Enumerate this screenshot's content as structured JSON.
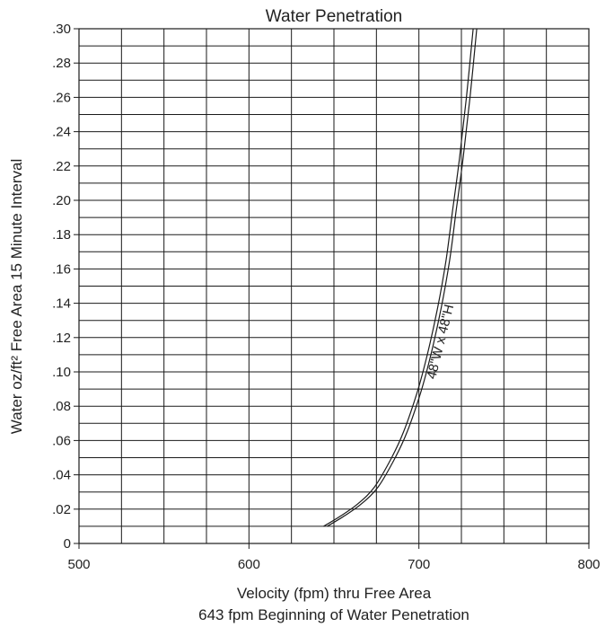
{
  "chart_data": {
    "type": "line",
    "title": "Water Penetration",
    "xlabel": "Velocity (fpm) thru Free Area",
    "note": "643 fpm Beginning of Water Penetration",
    "ylabel": "Water oz/ft² Free Area 15 Minute Interval",
    "xlim": [
      500,
      800
    ],
    "ylim": [
      0,
      0.3
    ],
    "x_ticks": [
      {
        "value": 500,
        "label": "500"
      },
      {
        "value": 600,
        "label": "600"
      },
      {
        "value": 700,
        "label": "700"
      },
      {
        "value": 800,
        "label": "800"
      }
    ],
    "x_minor_step": 25,
    "y_ticks": [
      {
        "value": 0,
        "label": "0"
      },
      {
        "value": 0.02,
        "label": ".02"
      },
      {
        "value": 0.04,
        "label": ".04"
      },
      {
        "value": 0.06,
        "label": ".06"
      },
      {
        "value": 0.08,
        "label": ".08"
      },
      {
        "value": 0.1,
        "label": ".10"
      },
      {
        "value": 0.12,
        "label": ".12"
      },
      {
        "value": 0.14,
        "label": ".14"
      },
      {
        "value": 0.16,
        "label": ".16"
      },
      {
        "value": 0.18,
        "label": ".18"
      },
      {
        "value": 0.2,
        "label": ".20"
      },
      {
        "value": 0.22,
        "label": ".22"
      },
      {
        "value": 0.24,
        "label": ".24"
      },
      {
        "value": 0.26,
        "label": ".26"
      },
      {
        "value": 0.28,
        "label": ".28"
      },
      {
        "value": 0.3,
        "label": ".30"
      }
    ],
    "y_minor_step": 0.01,
    "grid": true,
    "series": [
      {
        "name": "48\"W x 48\"H",
        "x": [
          645,
          655,
          665,
          675,
          685,
          692,
          700,
          706,
          712,
          717,
          721,
          725,
          729,
          733
        ],
        "y": [
          0.01,
          0.016,
          0.023,
          0.033,
          0.05,
          0.065,
          0.088,
          0.11,
          0.137,
          0.165,
          0.195,
          0.225,
          0.26,
          0.3
        ]
      }
    ]
  }
}
